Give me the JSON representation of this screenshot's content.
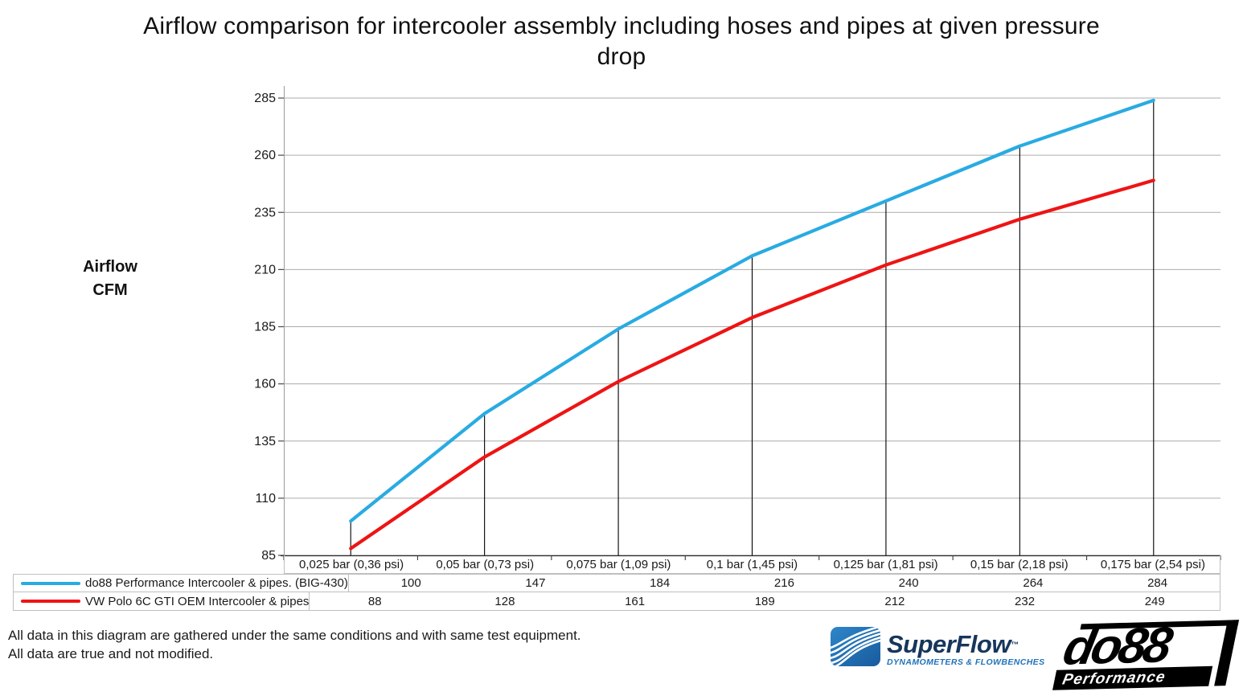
{
  "chart_data": {
    "type": "line",
    "title": "Airflow comparison for intercooler assembly including hoses and pipes at given pressure drop",
    "ylabel": "Airflow CFM",
    "ylabel_lines": [
      "Airflow",
      "CFM"
    ],
    "xlabel": "",
    "categories": [
      "0,025 bar (0,36 psi)",
      "0,05 bar (0,73 psi)",
      "0,075 bar (1,09 psi)",
      "0,1 bar (1,45 psi)",
      "0,125 bar (1,81 psi)",
      "0,15 bar (2,18 psi)",
      "0,175 bar (2,54 psi)"
    ],
    "series": [
      {
        "name": "do88 Performance Intercooler & pipes. (BIG-430)",
        "color": "#29ABE2",
        "values": [
          100,
          147,
          184,
          216,
          240,
          264,
          284
        ]
      },
      {
        "name": "VW Polo 6C GTI OEM Intercooler & pipes",
        "color": "#EE1414",
        "values": [
          88,
          128,
          161,
          189,
          212,
          232,
          249
        ]
      }
    ],
    "y_ticks": [
      85,
      110,
      135,
      160,
      185,
      210,
      235,
      260,
      285
    ],
    "ylim": [
      85,
      285
    ],
    "grid": true,
    "legend_position": "bottom-table-left"
  },
  "footer": {
    "line1": "All data in this diagram are gathered under the same conditions and with same test equipment.",
    "line2": "All data are true and not modified."
  },
  "logos": {
    "superflow": {
      "name": "SuperFlow",
      "tm": "™",
      "tagline": "DYNAMOMETERS & FLOWBENCHES",
      "brand_blue": "#2173B9",
      "brand_navy": "#16365C"
    },
    "do88": {
      "name": "do88",
      "tagline": "Performance"
    }
  }
}
